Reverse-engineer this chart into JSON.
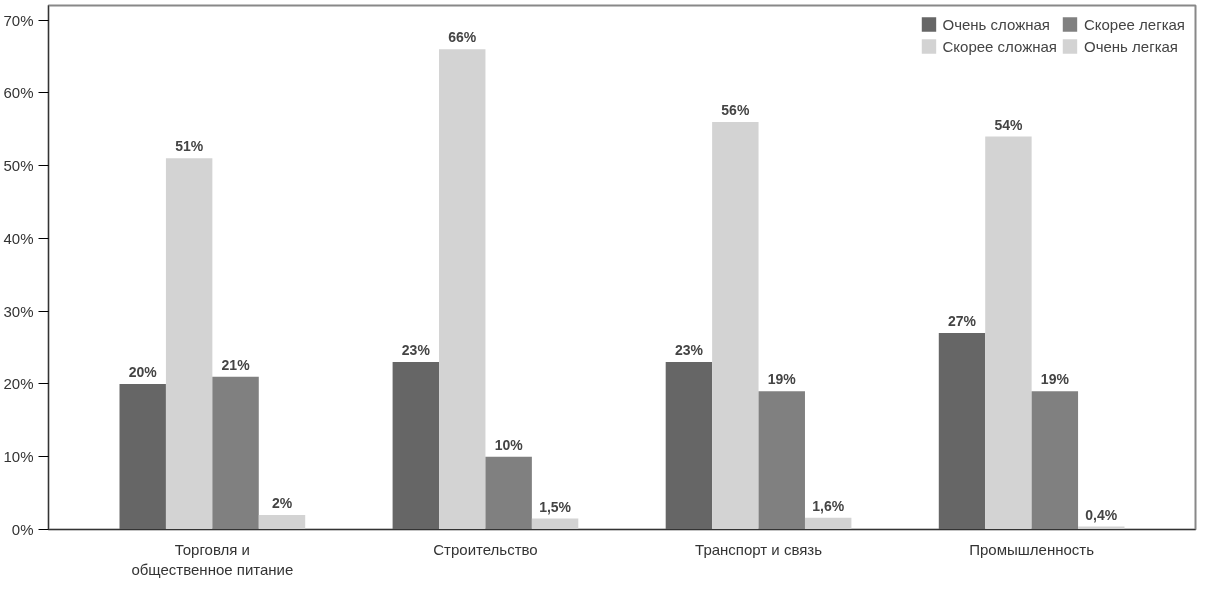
{
  "chart_data": {
    "type": "bar",
    "categories": [
      "Торговля и\nобщественное питание",
      "Строительство",
      "Транспорт и связь",
      "Промышленность"
    ],
    "series": [
      {
        "name": "Очень сложная",
        "color": "#666666",
        "values": [
          20,
          23,
          23,
          27
        ],
        "value_labels": [
          "20%",
          "23%",
          "23%",
          "27%"
        ]
      },
      {
        "name": "Скорее сложная",
        "color": "#d3d3d3",
        "values": [
          51,
          66,
          56,
          54
        ],
        "value_labels": [
          "51%",
          "66%",
          "56%",
          "54%"
        ]
      },
      {
        "name": "Скорее легкая",
        "color": "#808080",
        "values": [
          21,
          10,
          19,
          19
        ],
        "value_labels": [
          "21%",
          "10%",
          "19%",
          "19%"
        ]
      },
      {
        "name": "Очень легкая",
        "color": "#d3d3d3",
        "values": [
          2,
          1.5,
          1.6,
          0.4
        ],
        "value_labels": [
          "2%",
          "1,5%",
          "1,6%",
          "0,4%"
        ]
      }
    ],
    "ylim": [
      0,
      72
    ],
    "yticks": [
      {
        "value": 0,
        "label": "0%"
      },
      {
        "value": 10,
        "label": "10%"
      },
      {
        "value": 20,
        "label": "20%"
      },
      {
        "value": 30,
        "label": "30%"
      },
      {
        "value": 40,
        "label": "40%"
      },
      {
        "value": 50,
        "label": "50%"
      },
      {
        "value": 60,
        "label": "60%"
      },
      {
        "value": 70,
        "label": "70%"
      }
    ],
    "grid": false,
    "legend": "top right"
  }
}
